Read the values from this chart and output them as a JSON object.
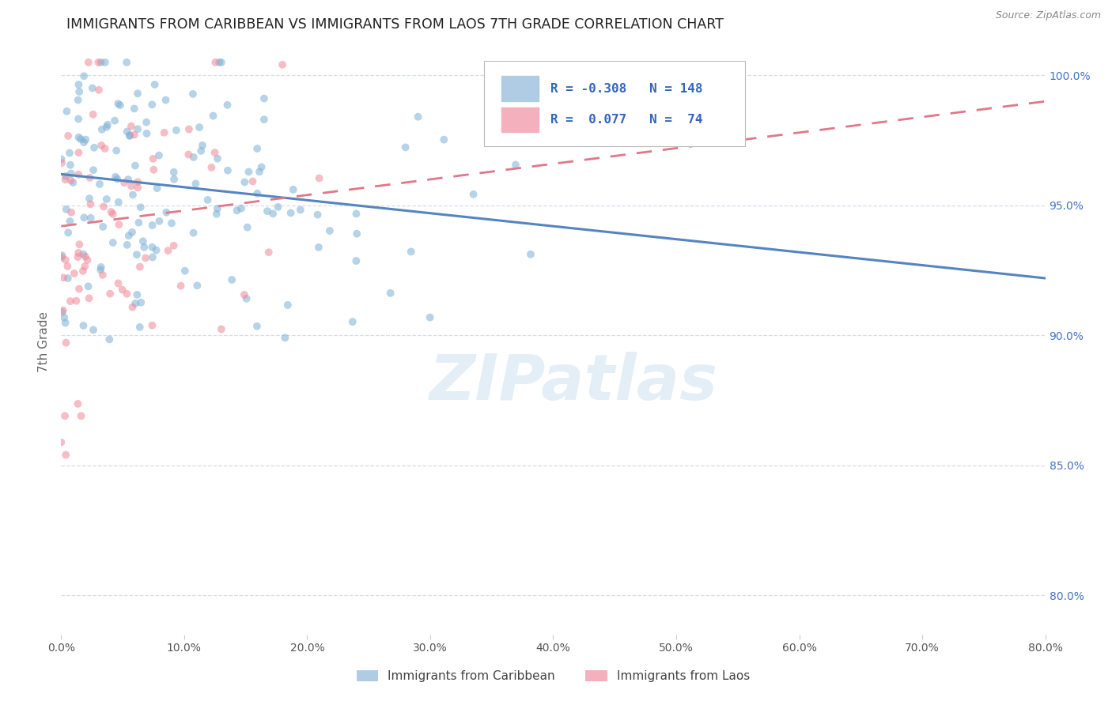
{
  "title": "IMMIGRANTS FROM CARIBBEAN VS IMMIGRANTS FROM LAOS 7TH GRADE CORRELATION CHART",
  "source": "Source: ZipAtlas.com",
  "ylabel": "7th Grade",
  "watermark": "ZIPatlas",
  "legend_carib_R": "-0.308",
  "legend_carib_N": "148",
  "legend_laos_R": "0.077",
  "legend_laos_N": "74",
  "carib_color": "#7bafd4",
  "laos_color": "#f08898",
  "carib_trend_color": "#5585c0",
  "laos_trend_color": "#e07888",
  "xmin": 0.0,
  "xmax": 0.8,
  "ymin": 0.785,
  "ymax": 1.01,
  "yticks": [
    0.8,
    0.85,
    0.9,
    0.95,
    1.0
  ],
  "xticks": [
    0.0,
    0.1,
    0.2,
    0.3,
    0.4,
    0.5,
    0.6,
    0.7,
    0.8
  ],
  "carib_trend_x0": 0.0,
  "carib_trend_x1": 0.8,
  "carib_trend_y0": 0.962,
  "carib_trend_y1": 0.922,
  "laos_trend_x0": 0.0,
  "laos_trend_x1": 0.8,
  "laos_trend_y0": 0.942,
  "laos_trend_y1": 0.99,
  "bg_color": "#ffffff",
  "grid_color": "#d8dde6",
  "title_color": "#222222",
  "yaxis_tick_color": "#4472c4",
  "xaxis_tick_color": "#555555"
}
